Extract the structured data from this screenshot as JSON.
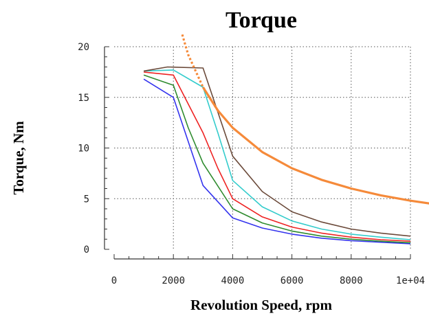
{
  "chart_data": {
    "type": "line",
    "title": "Torque",
    "xlabel": "Revolution Speed, rpm",
    "ylabel": "Torque, Nm",
    "xlim": [
      0,
      10000
    ],
    "ylim": [
      0,
      20
    ],
    "x_ticks": [
      0,
      2000,
      4000,
      6000,
      8000,
      10000
    ],
    "x_tick_labels": [
      "0",
      "2000",
      "4000",
      "6000",
      "8000",
      "1e+04"
    ],
    "y_ticks": [
      0,
      5,
      10,
      15,
      20
    ],
    "y_tick_labels": [
      "0",
      "5",
      "10",
      "15",
      "20"
    ],
    "grid": true,
    "series": [
      {
        "color": "#3333ee",
        "x": [
          1000,
          2000,
          3000,
          4000,
          5000,
          6000,
          7000,
          8000,
          9000,
          10000
        ],
        "y": [
          16.8,
          15.0,
          6.3,
          3.1,
          2.1,
          1.5,
          1.1,
          0.85,
          0.7,
          0.55
        ]
      },
      {
        "color": "#2e8b2e",
        "x": [
          1000,
          2000,
          2500,
          3000,
          4000,
          5000,
          6000,
          7000,
          8000,
          9000,
          10000
        ],
        "y": [
          17.2,
          16.2,
          12.0,
          8.5,
          4.0,
          2.6,
          1.8,
          1.3,
          1.0,
          0.8,
          0.65
        ]
      },
      {
        "color": "#ee2222",
        "x": [
          1000,
          2000,
          3000,
          3500,
          4000,
          5000,
          6000,
          7000,
          8000,
          9000,
          10000
        ],
        "y": [
          17.5,
          17.2,
          11.5,
          8.0,
          5.0,
          3.2,
          2.2,
          1.6,
          1.2,
          0.95,
          0.8
        ]
      },
      {
        "color": "#33cccc",
        "x": [
          1000,
          2000,
          3000,
          3500,
          4000,
          5000,
          6000,
          7000,
          8000,
          9000,
          10000
        ],
        "y": [
          17.6,
          17.7,
          16.0,
          11.5,
          6.8,
          4.2,
          2.8,
          2.0,
          1.5,
          1.2,
          0.95
        ]
      },
      {
        "color": "#6b4a3a",
        "x": [
          1000,
          1800,
          3000,
          4000,
          5000,
          6000,
          7000,
          8000,
          9000,
          10000
        ],
        "y": [
          17.6,
          18.0,
          17.9,
          9.2,
          5.7,
          3.7,
          2.7,
          2.0,
          1.6,
          1.3
        ]
      },
      {
        "color": "#f58a3a",
        "dashed_below_x": 3200,
        "x": [
          2300,
          2500,
          3000,
          3500,
          4000,
          5000,
          6000,
          7000,
          8000,
          9000,
          10000,
          10700
        ],
        "y": [
          21.2,
          19.2,
          16.0,
          13.7,
          12.0,
          9.6,
          8.0,
          6.86,
          6.0,
          5.33,
          4.8,
          4.5
        ]
      }
    ]
  }
}
